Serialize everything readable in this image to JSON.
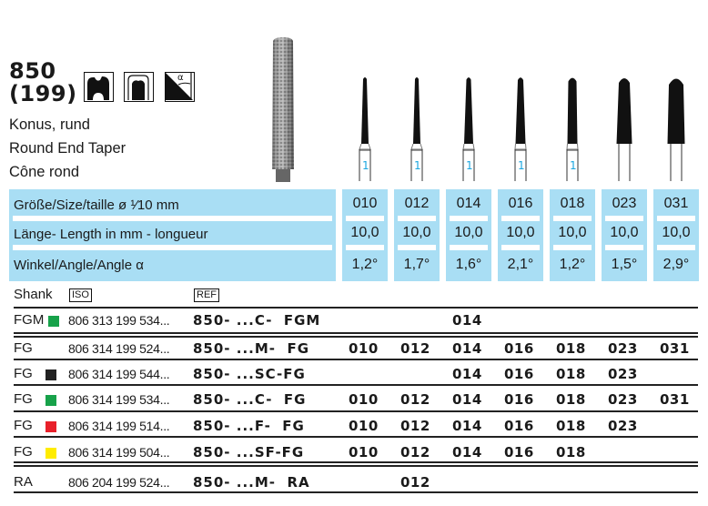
{
  "header": {
    "number": "850",
    "iso_figure": "(199)",
    "names": [
      "Konus, rund",
      "Round End Taper",
      "Cône rond"
    ],
    "icons": [
      "crown-prep-icon",
      "bridge-prep-icon",
      "taper-angle-icon"
    ],
    "icon_angle_symbol": "α"
  },
  "spec_table": {
    "size_label": "Größe/Size/taille  ø ¹⁄10 mm",
    "length_label": "Länge- Length in mm - longueur",
    "angle_label": "Winkel/Angle/Angle α",
    "columns": [
      {
        "size": "010",
        "length": "10,0",
        "angle": "1,2°",
        "shank_mark": "1"
      },
      {
        "size": "012",
        "length": "10,0",
        "angle": "1,7°",
        "shank_mark": "1"
      },
      {
        "size": "014",
        "length": "10,0",
        "angle": "1,6°",
        "shank_mark": "1"
      },
      {
        "size": "016",
        "length": "10,0",
        "angle": "2,1°",
        "shank_mark": "1"
      },
      {
        "size": "018",
        "length": "10,0",
        "angle": "1,2°",
        "shank_mark": "1"
      },
      {
        "size": "023",
        "length": "10,0",
        "angle": "1,5°",
        "shank_mark": ""
      },
      {
        "size": "031",
        "length": "10,0",
        "angle": "2,9°",
        "shank_mark": ""
      }
    ]
  },
  "order_table": {
    "shank_header": "Shank",
    "iso_header": "ISO",
    "ref_header": "REF",
    "rows": [
      {
        "shank": "FGM",
        "color": "#17a24a",
        "iso": "806 313 199 534...",
        "ref": "850- ...C-  FGM",
        "sizes": [
          "",
          "",
          "014",
          "",
          "",
          "",
          ""
        ]
      },
      {
        "shank": "FG",
        "color": "",
        "iso": "806 314 199 524...",
        "ref": "850- ...M-  FG",
        "sizes": [
          "010",
          "012",
          "014",
          "016",
          "018",
          "023",
          "031"
        ]
      },
      {
        "shank": "FG",
        "color": "#222222",
        "iso": "806 314 199 544...",
        "ref": "850- ...SC-FG",
        "sizes": [
          "",
          "",
          "014",
          "016",
          "018",
          "023",
          ""
        ]
      },
      {
        "shank": "FG",
        "color": "#17a24a",
        "iso": "806 314 199 534...",
        "ref": "850- ...C-  FG",
        "sizes": [
          "010",
          "012",
          "014",
          "016",
          "018",
          "023",
          "031"
        ]
      },
      {
        "shank": "FG",
        "color": "#e8202a",
        "iso": "806 314 199 514...",
        "ref": "850- ...F-  FG",
        "sizes": [
          "010",
          "012",
          "014",
          "016",
          "018",
          "023",
          ""
        ]
      },
      {
        "shank": "FG",
        "color": "#ffec00",
        "iso": "806 314 199 504...",
        "ref": "850- ...SF-FG",
        "sizes": [
          "010",
          "012",
          "014",
          "016",
          "018",
          "",
          ""
        ]
      },
      {
        "shank": "RA",
        "color": "",
        "iso": "806 204 199 524...",
        "ref": "850- ...M-  RA",
        "sizes": [
          "",
          "012",
          "",
          "",
          "",
          "",
          ""
        ]
      }
    ]
  },
  "colors": {
    "table_blue": "#a9def4",
    "shank_mark": "#1aa6e0"
  }
}
